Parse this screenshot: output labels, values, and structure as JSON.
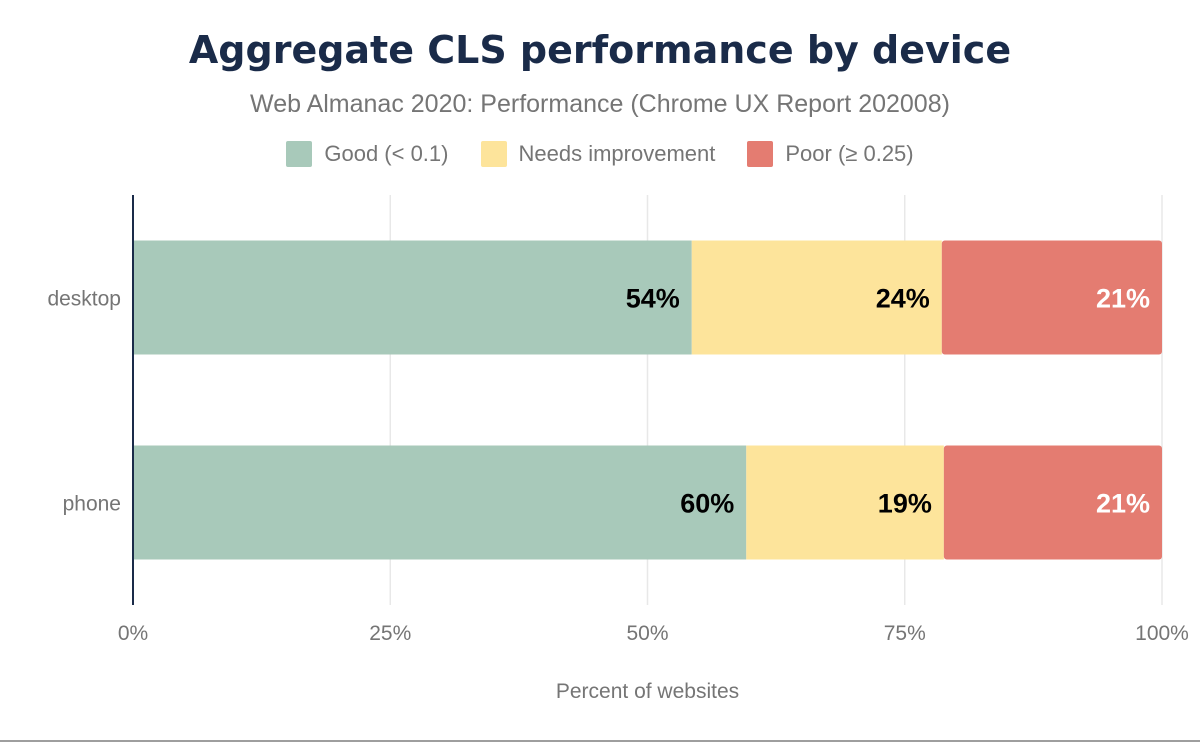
{
  "chart_data": {
    "type": "bar",
    "orientation": "horizontal",
    "stacked": true,
    "title": "Aggregate CLS performance by device",
    "subtitle": "Web Almanac 2020: Performance (Chrome UX Report 202008)",
    "xlabel": "Percent of websites",
    "ylabel": "",
    "xlim": [
      0,
      100
    ],
    "x_ticks": [
      "0%",
      "25%",
      "50%",
      "75%",
      "100%"
    ],
    "x_tick_values": [
      0,
      25,
      50,
      75,
      100
    ],
    "grid": true,
    "legend_position": "top",
    "categories": [
      "desktop",
      "phone"
    ],
    "series": [
      {
        "name": "Good (< 0.1)",
        "color": "#a8c9ba",
        "label_color": "#000000",
        "values": [
          54.3,
          59.6
        ],
        "labels": [
          "54%",
          "60%"
        ]
      },
      {
        "name": "Needs improvement",
        "color": "#fde49b",
        "label_color": "#000000",
        "values": [
          24.3,
          19.2
        ],
        "labels": [
          "24%",
          "19%"
        ]
      },
      {
        "name": "Poor (≥ 0.25)",
        "color": "#e47c71",
        "label_color": "#ffffff",
        "values": [
          21.4,
          21.2
        ],
        "labels": [
          "21%",
          "21%"
        ]
      }
    ]
  }
}
